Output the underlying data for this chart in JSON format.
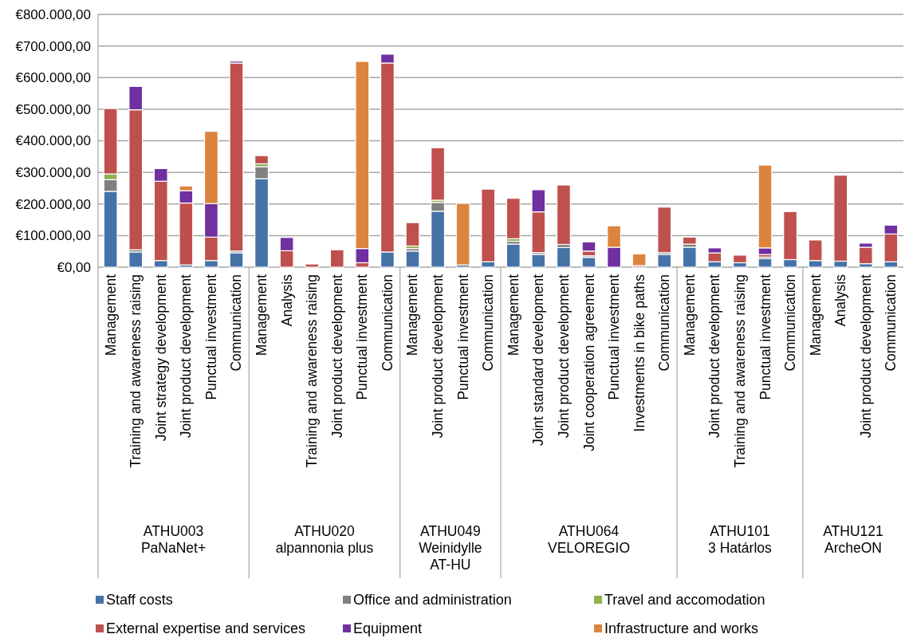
{
  "chart_data": {
    "type": "bar",
    "stacked": true,
    "grid": "y",
    "legend": "bottom",
    "categories": [
      "Management",
      "Training and awareness raising",
      "Joint strategy development",
      "Joint product development",
      "Punctual investment",
      "Communication",
      "Management",
      "Analysis",
      "Training and awareness raising",
      "Joint product development",
      "Punctual investment",
      "Communication",
      "Management",
      "Joint product development",
      "Punctual investment",
      "Communication",
      "Management",
      "Joint standard development",
      "Joint product development",
      "Joint cooperation agreement",
      "Punctual investment",
      "Investments in bike paths",
      "Communication",
      "Management",
      "Joint product development",
      "Training and awareness raising",
      "Punctual investment",
      "Communication",
      "Management",
      "Analysis",
      "Joint product development",
      "Communication"
    ],
    "ylim": [
      0,
      800000
    ],
    "yticks": [
      {
        "value": 0,
        "label": "€0,00"
      },
      {
        "value": 100000,
        "label": "€100.000,00"
      },
      {
        "value": 200000,
        "label": "€200.000,00"
      },
      {
        "value": 300000,
        "label": "€300.000,00"
      },
      {
        "value": 400000,
        "label": "€400.000,00"
      },
      {
        "value": 500000,
        "label": "€500.000,00"
      },
      {
        "value": 600000,
        "label": "€600.000,00"
      },
      {
        "value": 700000,
        "label": "€700.000,00"
      },
      {
        "value": 800000,
        "label": "€800.000,00"
      }
    ],
    "annotations": [
      "ATHU003\nPaNaNet+",
      "ATHU020\nalpannonia plus",
      "ATHU049\nWeinidylle\nAT-HU",
      "ATHU064\nVELOREGIO",
      "ATHU101\n3 Határlos",
      "ATHU121\nArcheON"
    ],
    "series": [
      {
        "name": "Staff costs",
        "color": "#4572a7",
        "values": [
          240000,
          48000,
          21000,
          7000,
          21000,
          45000,
          280000,
          0,
          0,
          0,
          0,
          48000,
          51000,
          177000,
          7000,
          17000,
          73000,
          40000,
          62000,
          31000,
          0,
          0,
          40000,
          63000,
          17000,
          14000,
          27000,
          24000,
          21000,
          19000,
          11000,
          17000
        ]
      },
      {
        "name": "Office and administration",
        "color": "#808080",
        "values": [
          37000,
          7000,
          0,
          0,
          0,
          6000,
          38000,
          0,
          0,
          0,
          0,
          0,
          8000,
          28000,
          0,
          0,
          9000,
          6000,
          10000,
          5000,
          0,
          0,
          6000,
          10000,
          0,
          0,
          5000,
          0,
          0,
          0,
          0,
          0
        ]
      },
      {
        "name": "Travel and accomodation",
        "color": "#8fb04f",
        "values": [
          18000,
          0,
          0,
          0,
          0,
          0,
          9000,
          0,
          0,
          0,
          0,
          0,
          8000,
          7000,
          0,
          0,
          8000,
          0,
          0,
          0,
          0,
          0,
          0,
          0,
          0,
          0,
          0,
          0,
          0,
          0,
          0,
          0
        ]
      },
      {
        "name": "External expertise and services",
        "color": "#c0504d",
        "values": [
          207000,
          443000,
          251000,
          196000,
          74000,
          595000,
          26000,
          52000,
          10000,
          55000,
          14000,
          598000,
          74000,
          166000,
          0,
          230000,
          128000,
          129000,
          188000,
          15000,
          0,
          5000,
          144000,
          22000,
          28000,
          24000,
          8000,
          152000,
          65000,
          272000,
          52000,
          88000
        ]
      },
      {
        "name": "Equipment",
        "color": "#7030a0",
        "values": [
          0,
          74000,
          40000,
          39000,
          106000,
          6000,
          0,
          42000,
          0,
          0,
          45000,
          28000,
          0,
          0,
          0,
          0,
          0,
          70000,
          0,
          29000,
          63000,
          0,
          0,
          0,
          16000,
          0,
          21000,
          0,
          0,
          0,
          13000,
          28000
        ]
      },
      {
        "name": "Infrastructure and works",
        "color": "#dc843e",
        "values": [
          0,
          0,
          0,
          15000,
          229000,
          0,
          0,
          0,
          0,
          0,
          592000,
          0,
          0,
          0,
          195000,
          0,
          0,
          0,
          0,
          0,
          68000,
          37000,
          0,
          0,
          0,
          0,
          262000,
          0,
          0,
          0,
          0,
          0
        ]
      }
    ]
  }
}
